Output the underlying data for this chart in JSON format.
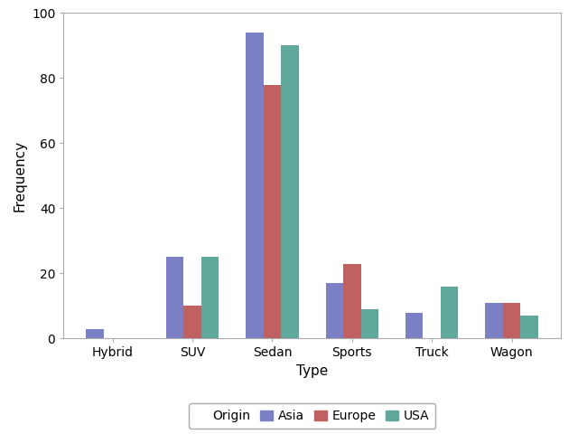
{
  "categories": [
    "Hybrid",
    "SUV",
    "Sedan",
    "Sports",
    "Truck",
    "Wagon"
  ],
  "series": {
    "Asia": [
      3,
      25,
      94,
      17,
      8,
      11
    ],
    "Europe": [
      0,
      10,
      78,
      23,
      0,
      11
    ],
    "USA": [
      0,
      25,
      90,
      9,
      16,
      7
    ]
  },
  "colors": {
    "Asia": "#7b7fc4",
    "Europe": "#c06060",
    "USA": "#5fa89a"
  },
  "xlabel": "Type",
  "ylabel": "Frequency",
  "ylim": [
    0,
    100
  ],
  "yticks": [
    0,
    20,
    40,
    60,
    80,
    100
  ],
  "legend_title": "Origin",
  "legend_order": [
    "Asia",
    "Europe",
    "USA"
  ],
  "background_color": "#ffffff",
  "bar_width": 0.22
}
